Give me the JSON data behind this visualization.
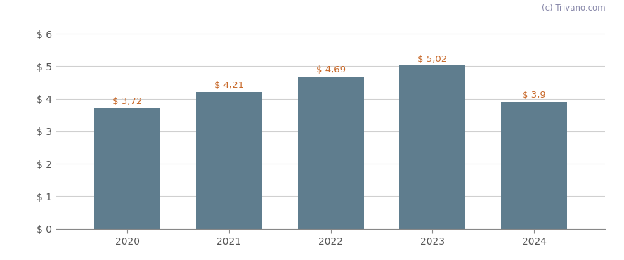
{
  "categories": [
    "2020",
    "2021",
    "2022",
    "2023",
    "2024"
  ],
  "values": [
    3.72,
    4.21,
    4.69,
    5.02,
    3.9
  ],
  "labels": [
    "$ 3,72",
    "$ 4,21",
    "$ 4,69",
    "$ 5,02",
    "$ 3,9"
  ],
  "bar_color": "#5f7d8e",
  "background_color": "#ffffff",
  "grid_color": "#d0d0d0",
  "label_color": "#c8692a",
  "watermark_text": "(c) Trivano.com",
  "watermark_color": "#8888aa",
  "ylim": [
    0,
    6.4
  ],
  "yticks": [
    0,
    1,
    2,
    3,
    4,
    5,
    6
  ],
  "ytick_labels": [
    "$ 0",
    "$ 1",
    "$ 2",
    "$ 3",
    "$ 4",
    "$ 5",
    "$ 6"
  ],
  "bar_width": 0.65,
  "tick_label_color": "#555555",
  "tick_label_fontsize": 10,
  "label_fontsize": 9.5,
  "spine_color": "#888888"
}
